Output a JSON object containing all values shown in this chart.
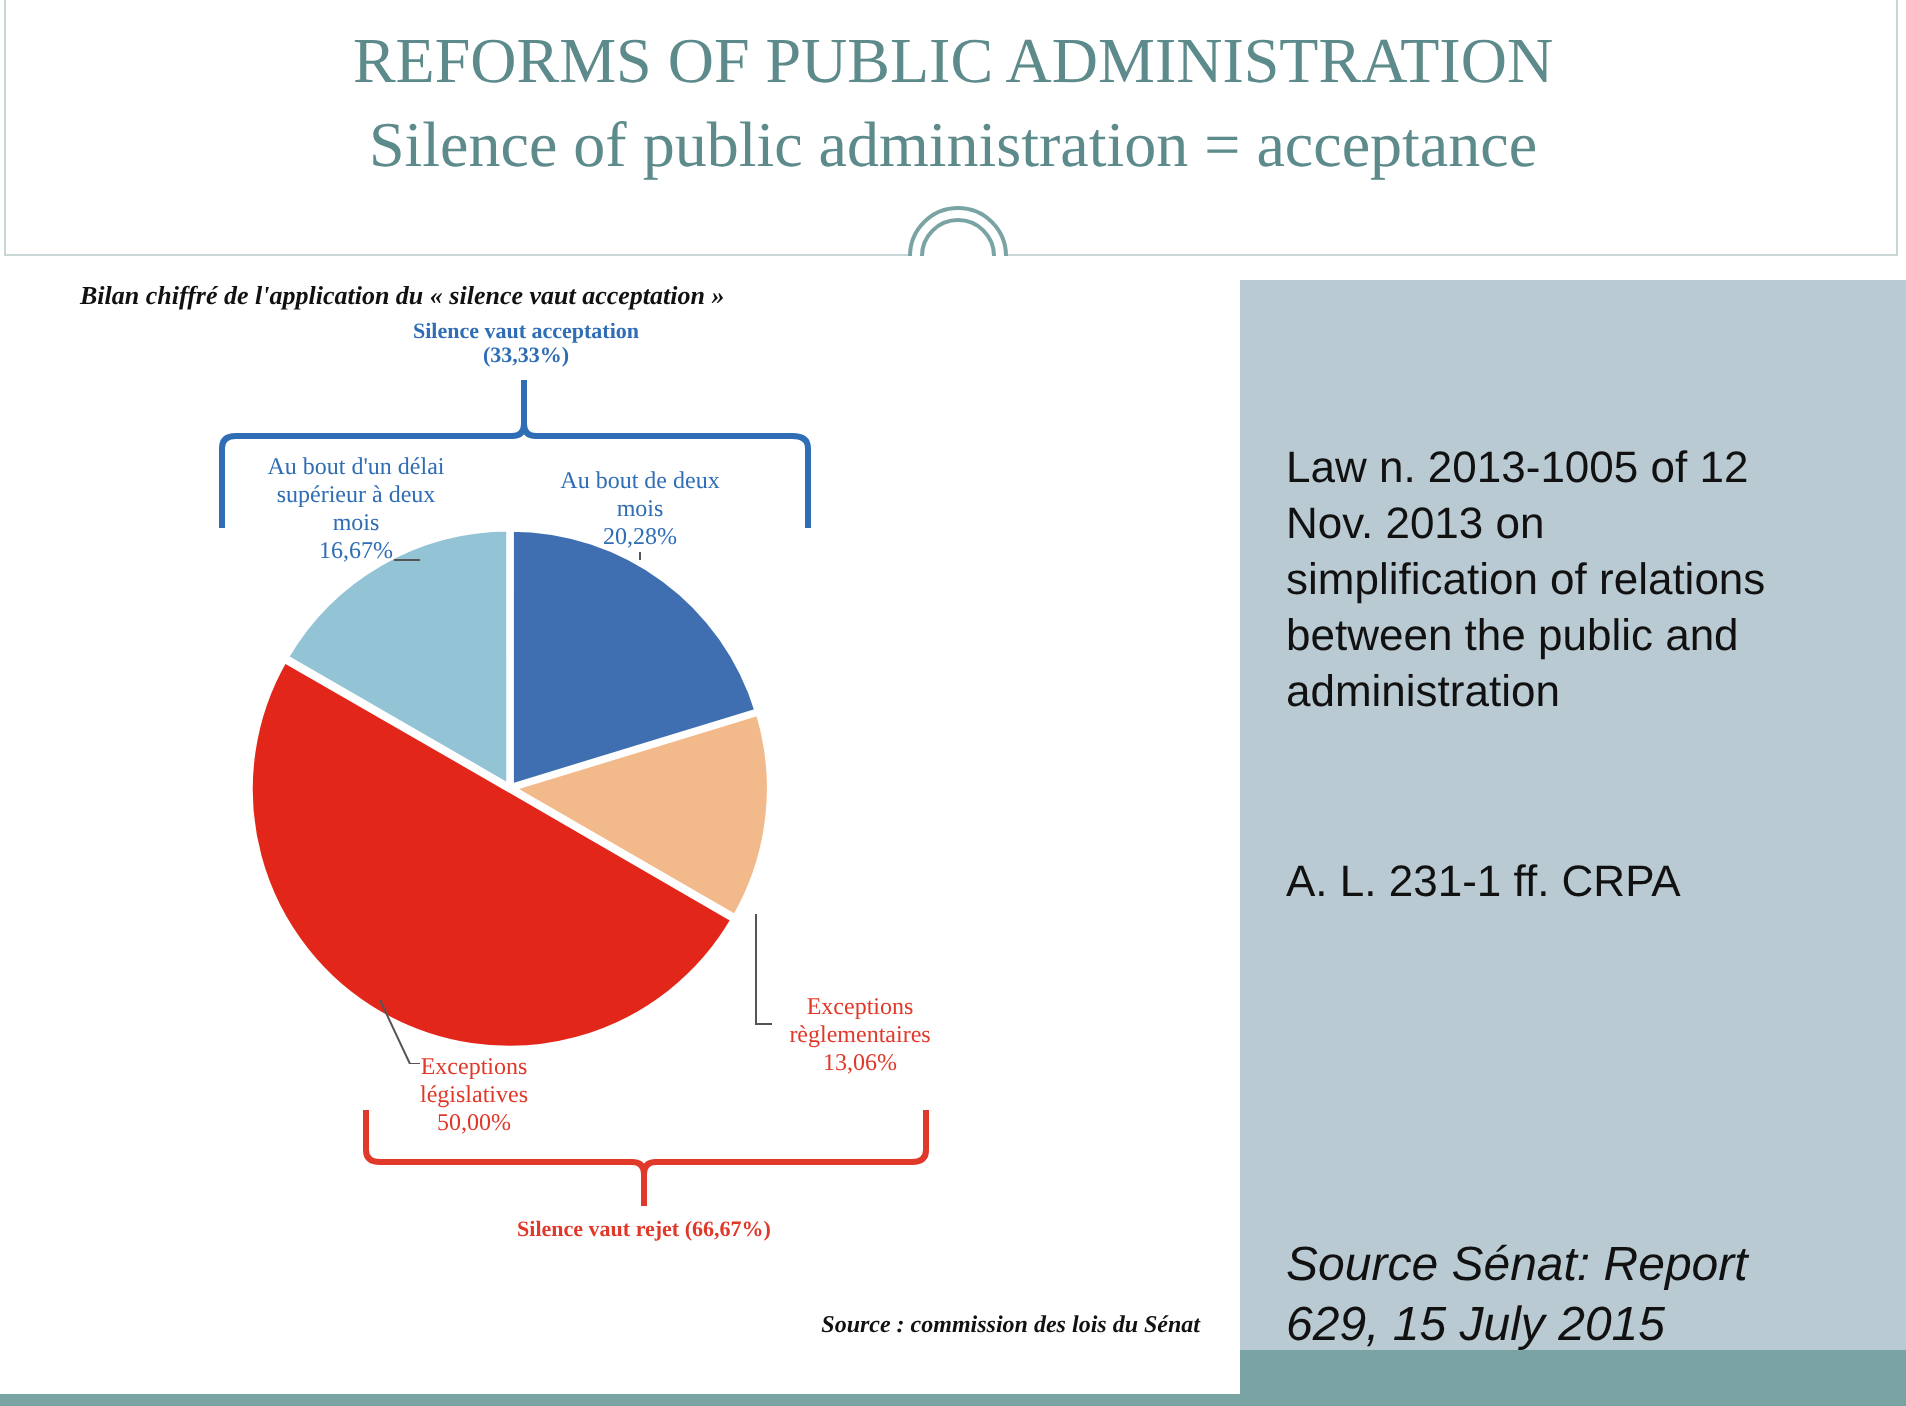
{
  "chart_data": {
    "type": "pie",
    "title": "REFORMS OF PUBLIC ADMINISTRATION",
    "subtitle": "Silence of public administration = acceptance",
    "categories": [
      "Au bout de deux mois",
      "Exceptions règlementaires",
      "Exceptions législatives",
      "Au bout d'un délai supérieur à deux mois"
    ],
    "values": [
      20.28,
      13.06,
      50.0,
      16.67
    ],
    "colors": [
      "#3f6fb0",
      "#f2b98a",
      "#e3261a",
      "#93c4d6"
    ],
    "value_labels": [
      "20,28%",
      "13,06%",
      "50,00%",
      "16,67%"
    ],
    "legend": false,
    "annotations": [
      "Bilan chiffré de l'application du « silence vaut acceptation »",
      "Silence vaut acceptation (33,33%)",
      "Silence vaut rejet (66,67%)",
      "Law n. 2013-1005 of 12 Nov. 2013 on simplification of relations between the public and administration",
      "A. L. 231-1 ff. CRPA",
      "Source Sénat: Report 629, 15 July 2015",
      "Source : commission des lois du Sénat"
    ]
  }
}
